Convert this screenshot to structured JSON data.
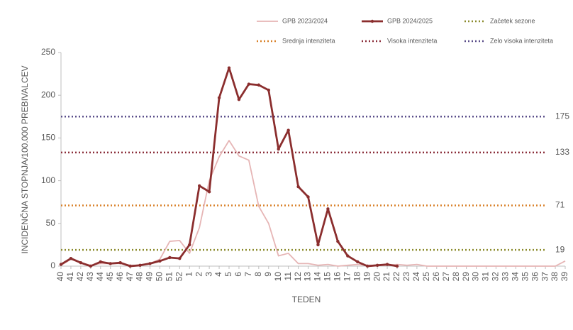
{
  "chart_data": {
    "type": "line",
    "y_label": "INCIDENČNA  STOPNJA/100.000  PREBIVALCEV",
    "x_label": "TEDEN",
    "categories": [
      "40",
      "41",
      "42",
      "43",
      "44",
      "45",
      "46",
      "47",
      "48",
      "49",
      "50",
      "51",
      "52",
      "1",
      "2",
      "3",
      "4",
      "5",
      "6",
      "7",
      "8",
      "9",
      "10",
      "11",
      "12",
      "13",
      "14",
      "15",
      "16",
      "17",
      "18",
      "19",
      "20",
      "21",
      "22",
      "23",
      "24",
      "25",
      "26",
      "27",
      "28",
      "29",
      "30",
      "31",
      "32",
      "33",
      "34",
      "35",
      "36",
      "37",
      "38",
      "39"
    ],
    "series": [
      {
        "name": "GPB 2023/2024",
        "color": "#e6b5b5",
        "markers": false,
        "values": [
          1,
          8,
          4,
          1,
          3,
          3,
          3,
          1,
          1,
          3,
          8,
          29,
          30,
          15,
          45,
          100,
          128,
          147,
          129,
          124,
          70,
          50,
          12,
          15,
          3,
          3,
          1,
          2,
          0,
          1,
          2,
          1,
          1,
          1,
          2,
          1,
          2,
          0,
          0,
          0,
          0,
          0,
          0,
          0,
          0,
          0,
          0,
          0,
          0,
          0,
          0,
          6
        ]
      },
      {
        "name": "GPB 2024/2025",
        "color": "#8b2e2e",
        "markers": true,
        "values": [
          2,
          9,
          4,
          0,
          5,
          3,
          4,
          0,
          1,
          3,
          6,
          10,
          9,
          25,
          94,
          87,
          197,
          232,
          195,
          213,
          212,
          206,
          137,
          159,
          93,
          81,
          25,
          67,
          29,
          12,
          5,
          0,
          1,
          2,
          0,
          null,
          null,
          null,
          null,
          null,
          null,
          null,
          null,
          null,
          null,
          null,
          null,
          null,
          null,
          null,
          null,
          null
        ]
      }
    ],
    "thresholds": [
      {
        "name": "Začetek sezone",
        "color": "#8c8c2e",
        "value": 19
      },
      {
        "name": "Srednja intenziteta",
        "color": "#d9822b",
        "value": 71
      },
      {
        "name": "Visoka intenziteta",
        "color": "#8b2e3a",
        "value": 133
      },
      {
        "name": "Zelo visoka intenziteta",
        "color": "#5a4e8a",
        "value": 175
      }
    ],
    "ylim": [
      0,
      250
    ],
    "yticks": [
      0,
      50,
      100,
      150,
      200,
      250
    ]
  }
}
